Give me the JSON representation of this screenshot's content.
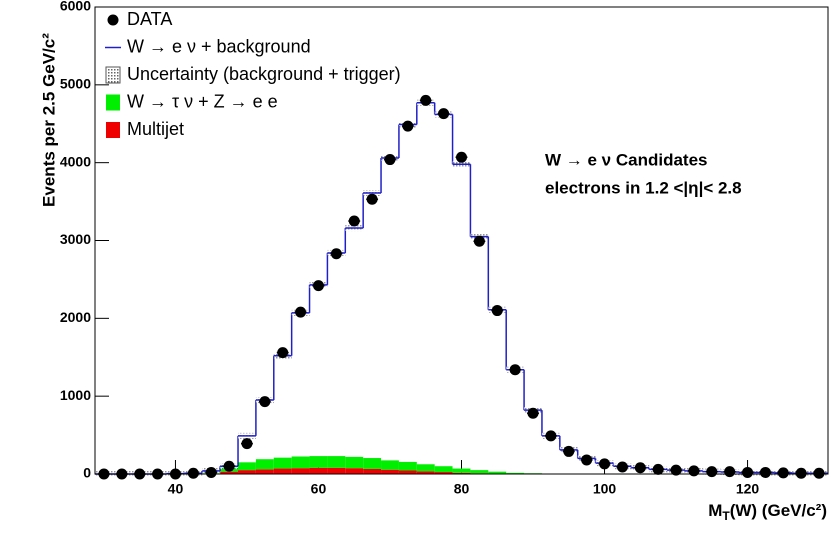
{
  "chart_data": {
    "type": "histogram",
    "bins": [
      28.75,
      31.25,
      33.75,
      36.25,
      38.75,
      41.25,
      43.75,
      46.25,
      48.75,
      51.25,
      53.75,
      56.25,
      58.75,
      61.25,
      63.75,
      66.25,
      68.75,
      71.25,
      73.75,
      76.25,
      78.75,
      81.25,
      83.75,
      86.25,
      88.75,
      91.25,
      93.75,
      96.25,
      98.75,
      101.25,
      103.75,
      106.25,
      108.75,
      111.25,
      113.75,
      116.25,
      118.75,
      121.25,
      123.75,
      126.25,
      128.75,
      131.25
    ],
    "series": [
      {
        "name": "DATA",
        "color": "#000000",
        "draw": "points",
        "values": [
          0,
          0,
          0,
          0,
          0,
          10,
          20,
          100,
          390,
          930,
          1560,
          2080,
          2420,
          2830,
          3250,
          3530,
          4040,
          4470,
          4800,
          4630,
          4070,
          2990,
          2100,
          1340,
          780,
          490,
          290,
          180,
          130,
          90,
          80,
          60,
          50,
          40,
          30,
          30,
          20,
          20,
          15,
          10,
          10
        ]
      },
      {
        "name": "W → e ν  +  background",
        "color": "#2020c8",
        "draw": "step",
        "values": [
          0,
          0,
          0,
          0,
          5,
          10,
          40,
          100,
          490,
          950,
          1520,
          2070,
          2430,
          2840,
          3160,
          3610,
          4060,
          4490,
          4770,
          4620,
          3980,
          3050,
          2110,
          1340,
          820,
          490,
          310,
          200,
          140,
          100,
          80,
          60,
          50,
          40,
          30,
          25,
          20,
          20,
          15,
          10,
          10
        ]
      },
      {
        "name": "W → τ ν  +  Z → e e",
        "color": "#00ee00",
        "draw": "stack",
        "values": [
          0,
          0,
          0,
          0,
          0,
          0,
          20,
          60,
          100,
          130,
          140,
          150,
          150,
          150,
          145,
          140,
          120,
          110,
          90,
          75,
          55,
          40,
          25,
          15,
          10,
          0,
          0,
          0,
          0,
          0,
          0,
          0,
          0,
          0,
          0,
          0,
          0,
          0,
          0,
          0,
          0
        ]
      },
      {
        "name": "Multijet",
        "color": "#ee0000",
        "draw": "stack",
        "values": [
          0,
          0,
          0,
          0,
          0,
          0,
          0,
          30,
          50,
          60,
          70,
          75,
          80,
          80,
          75,
          65,
          55,
          45,
          35,
          25,
          15,
          10,
          5,
          0,
          0,
          0,
          0,
          0,
          0,
          0,
          0,
          0,
          0,
          0,
          0,
          0,
          0,
          0,
          0,
          0,
          0
        ]
      }
    ],
    "uncertainty_label": "Uncertainty (background + trigger)",
    "annotation": [
      "W → e ν Candidates",
      "electrons in 1.2 <|η|< 2.8"
    ],
    "y_label": "Events per 2.5 GeV/c²",
    "x_label": {
      "main": "M",
      "sub": "T",
      "rest": "(W) (GeV/c²)"
    },
    "xlim": [
      28.75,
      131.25
    ],
    "xticks": [
      40,
      60,
      80,
      100,
      120
    ],
    "ylim": [
      0,
      6000
    ],
    "yticks": [
      0,
      1000,
      2000,
      3000,
      4000,
      5000,
      6000
    ],
    "legend": "top-left"
  }
}
